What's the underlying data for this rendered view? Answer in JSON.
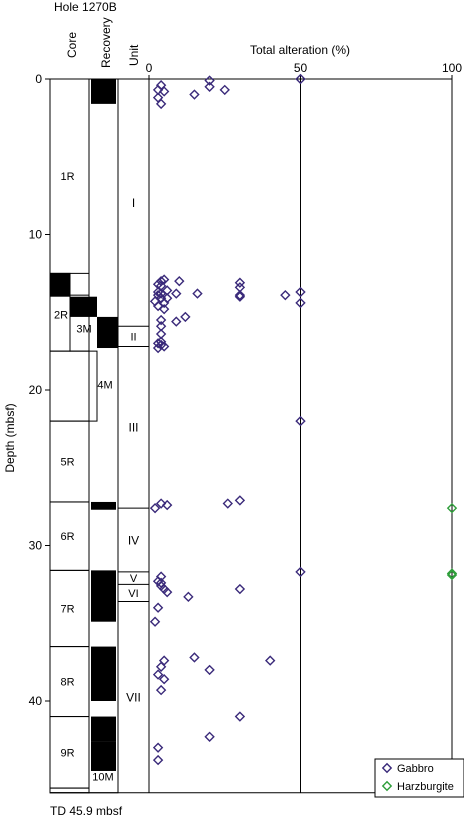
{
  "header": {
    "hole_label": "Hole 1270B",
    "core_col": "Core",
    "recovery_col": "Recovery",
    "unit_col": "Unit",
    "depth_axis_label": "Depth (mbsf)",
    "td_label": "TD 45.9 mbsf"
  },
  "cores": [
    {
      "label": "1R",
      "top": 0.0,
      "bottom": 12.5
    },
    {
      "label": "2R",
      "top": 12.5,
      "bottom": 17.5
    },
    {
      "label": "3M",
      "top": 13.9,
      "bottom": 17.5
    },
    {
      "label": "4M",
      "top": 17.5,
      "bottom": 22.0
    },
    {
      "label": "5R",
      "top": 22.0,
      "bottom": 27.2
    },
    {
      "label": "6R",
      "top": 27.2,
      "bottom": 31.6
    },
    {
      "label": "7R",
      "top": 31.6,
      "bottom": 36.5
    },
    {
      "label": "8R",
      "top": 36.5,
      "bottom": 41.0
    },
    {
      "label": "9R",
      "top": 41.0,
      "bottom": 45.6
    },
    {
      "label": "10M",
      "top": 45.6,
      "bottom": 45.9
    }
  ],
  "recovery": [
    {
      "top": 0.0,
      "bottom": 1.6
    },
    {
      "top": 12.5,
      "bottom": 14.0
    },
    {
      "top": 14.0,
      "bottom": 15.3
    },
    {
      "top": 15.3,
      "bottom": 17.3
    },
    {
      "top": 27.2,
      "bottom": 27.7
    },
    {
      "top": 31.6,
      "bottom": 34.9
    },
    {
      "top": 36.5,
      "bottom": 40.0
    },
    {
      "top": 41.0,
      "bottom": 42.6
    },
    {
      "top": 42.6,
      "bottom": 44.5
    }
  ],
  "units": [
    {
      "label": "I",
      "top": 0.0,
      "bottom": 15.9
    },
    {
      "label": "II",
      "top": 15.9,
      "bottom": 17.2
    },
    {
      "label": "III",
      "top": 17.2,
      "bottom": 27.6
    },
    {
      "label": "IV",
      "top": 27.6,
      "bottom": 31.7
    },
    {
      "label": "V",
      "top": 31.7,
      "bottom": 32.5
    },
    {
      "label": "VI",
      "top": 32.5,
      "bottom": 33.6
    },
    {
      "label": "VII",
      "top": 33.6,
      "bottom": 45.9
    }
  ],
  "chart_data": {
    "type": "scatter",
    "title": "",
    "xlabel": "Total alteration (%)",
    "ylabel": "Depth (mbsf)",
    "xlim": [
      0,
      100
    ],
    "ylim": [
      0,
      45.9
    ],
    "y_inverted": true,
    "xticks": [
      0,
      50,
      100
    ],
    "yticks": [
      0,
      10,
      20,
      30,
      40
    ],
    "grid": "vertical lines at 50 and 100",
    "legend_position": "bottom-right",
    "series": [
      {
        "name": "Gabbro",
        "color": "#3a2a7a",
        "points": [
          [
            50,
            0.0
          ],
          [
            20,
            0.1
          ],
          [
            4,
            0.4
          ],
          [
            20,
            0.5
          ],
          [
            25,
            0.7
          ],
          [
            3,
            0.7
          ],
          [
            5,
            0.8
          ],
          [
            15,
            1.0
          ],
          [
            3,
            1.2
          ],
          [
            4,
            1.6
          ],
          [
            5,
            12.9
          ],
          [
            4,
            13.0
          ],
          [
            10,
            13.0
          ],
          [
            30,
            13.1
          ],
          [
            3,
            13.2
          ],
          [
            4,
            13.3
          ],
          [
            30,
            13.4
          ],
          [
            6,
            13.6
          ],
          [
            50,
            13.7
          ],
          [
            3,
            13.7
          ],
          [
            4,
            13.8
          ],
          [
            9,
            13.8
          ],
          [
            16,
            13.8
          ],
          [
            30,
            13.9
          ],
          [
            45,
            13.9
          ],
          [
            3,
            13.9
          ],
          [
            30,
            14.0
          ],
          [
            4,
            14.1
          ],
          [
            6,
            14.1
          ],
          [
            2,
            14.3
          ],
          [
            50,
            14.4
          ],
          [
            5,
            14.4
          ],
          [
            3,
            14.6
          ],
          [
            5,
            14.8
          ],
          [
            12,
            15.3
          ],
          [
            4,
            15.5
          ],
          [
            9,
            15.6
          ],
          [
            4,
            15.9
          ],
          [
            4,
            16.4
          ],
          [
            4,
            16.9
          ],
          [
            3,
            17.0
          ],
          [
            4,
            17.1
          ],
          [
            5,
            17.2
          ],
          [
            3,
            17.3
          ],
          [
            50,
            22.0
          ],
          [
            4,
            27.3
          ],
          [
            26,
            27.3
          ],
          [
            30,
            27.1
          ],
          [
            6,
            27.4
          ],
          [
            2,
            27.6
          ],
          [
            50,
            31.7
          ],
          [
            4,
            32.0
          ],
          [
            3,
            32.3
          ],
          [
            4,
            32.4
          ],
          [
            4,
            32.6
          ],
          [
            5,
            32.8
          ],
          [
            30,
            32.8
          ],
          [
            6,
            33.0
          ],
          [
            13,
            33.3
          ],
          [
            3,
            34.0
          ],
          [
            2,
            34.9
          ],
          [
            15,
            37.2
          ],
          [
            40,
            37.4
          ],
          [
            5,
            37.4
          ],
          [
            4,
            37.8
          ],
          [
            20,
            38.0
          ],
          [
            3,
            38.3
          ],
          [
            5,
            38.6
          ],
          [
            4,
            39.3
          ],
          [
            30,
            41.0
          ],
          [
            20,
            42.3
          ],
          [
            3,
            43.0
          ],
          [
            3,
            43.8
          ]
        ]
      },
      {
        "name": "Harzburgite",
        "color": "#2e9e3a",
        "points": [
          [
            100,
            27.6
          ],
          [
            100,
            31.8
          ],
          [
            100,
            31.9
          ]
        ]
      }
    ]
  }
}
